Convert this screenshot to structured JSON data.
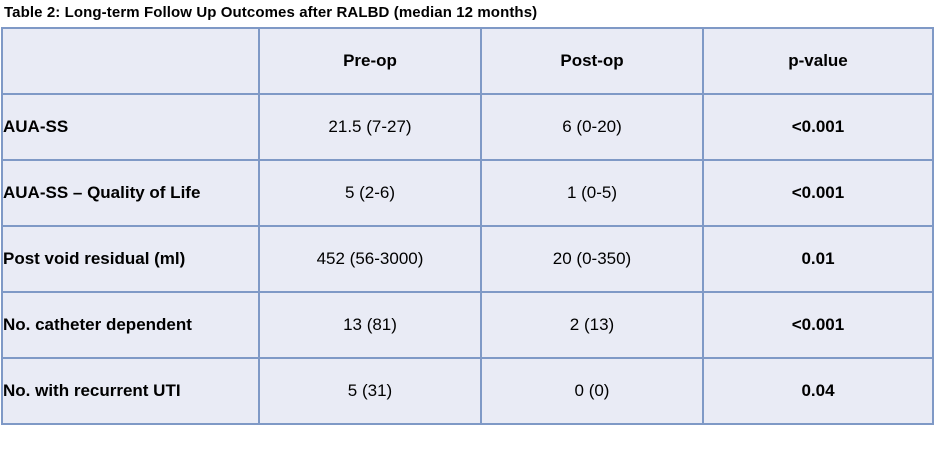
{
  "title": "Table 2: Long-term Follow Up Outcomes after RALBD (median 12 months)",
  "colors": {
    "cell_background": "#e9ebf5",
    "border": "#7f99c6",
    "text": "#000000",
    "page_background": "#ffffff"
  },
  "table": {
    "columns": [
      "",
      "Pre-op",
      "Post-op",
      "p-value"
    ],
    "rows": [
      {
        "label": "AUA-SS",
        "pre_op": "21.5 (7-27)",
        "post_op": "6 (0-20)",
        "p_value": "<0.001"
      },
      {
        "label": "AUA-SS – Quality of Life",
        "pre_op": "5 (2-6)",
        "post_op": "1 (0-5)",
        "p_value": "<0.001"
      },
      {
        "label": "Post void residual (ml)",
        "pre_op": "452 (56-3000)",
        "post_op": "20 (0-350)",
        "p_value": "0.01"
      },
      {
        "label": "No. catheter dependent",
        "pre_op": "13 (81)",
        "post_op": "2 (13)",
        "p_value": "<0.001"
      },
      {
        "label": "No. with recurrent UTI",
        "pre_op": "5 (31)",
        "post_op": "0 (0)",
        "p_value": "0.04"
      }
    ]
  },
  "chart_data": {
    "type": "table",
    "title": "Table 2: Long-term Follow Up Outcomes after RALBD (median 12 months)",
    "columns": [
      "",
      "Pre-op",
      "Post-op",
      "p-value"
    ],
    "rows": [
      [
        "AUA-SS",
        "21.5 (7-27)",
        "6 (0-20)",
        "<0.001"
      ],
      [
        "AUA-SS – Quality of Life",
        "5 (2-6)",
        "1 (0-5)",
        "<0.001"
      ],
      [
        "Post void residual (ml)",
        "452 (56-3000)",
        "20 (0-350)",
        "0.01"
      ],
      [
        "No. catheter dependent",
        "13 (81)",
        "2 (13)",
        "<0.001"
      ],
      [
        "No. with recurrent UTI",
        "5 (31)",
        "0 (0)",
        "0.04"
      ]
    ]
  }
}
